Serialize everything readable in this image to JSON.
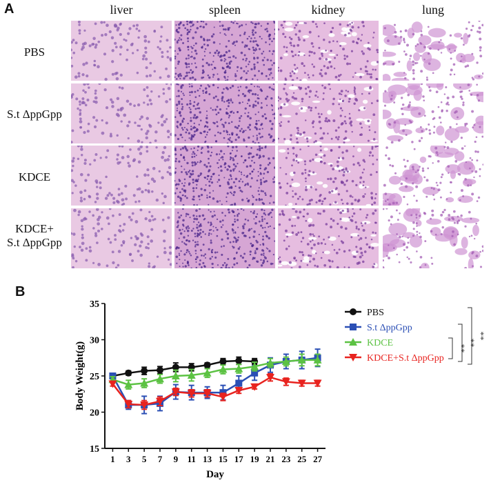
{
  "panel_labels": {
    "a": "A",
    "b": "B"
  },
  "histology": {
    "columns": [
      "liver",
      "spleen",
      "kidney",
      "lung"
    ],
    "rows": [
      "PBS",
      "S.t ΔppGpp",
      "KDCE",
      "KDCE+\nS.t ΔppGpp"
    ]
  },
  "colors": {
    "pbs": "#111111",
    "st": "#2b4fb5",
    "kdce": "#5cc243",
    "kdce_st": "#e8231f",
    "tissue_bg": "#e7c7e0",
    "nuclei": "#6a3a9c"
  },
  "chart_data": {
    "type": "line",
    "xlabel": "Day",
    "ylabel": "Body Weight(g)",
    "x": [
      1,
      3,
      5,
      7,
      9,
      11,
      13,
      15,
      17,
      19,
      21,
      23,
      25,
      27
    ],
    "ylim": [
      15,
      35
    ],
    "yticks": [
      15,
      20,
      25,
      30,
      35
    ],
    "legend_position": "right",
    "series": [
      {
        "name": "PBS",
        "marker": "circle",
        "values": [
          25.0,
          25.4,
          25.7,
          25.8,
          26.2,
          26.2,
          26.5,
          27.0,
          27.1,
          27.0,
          null,
          null,
          null,
          null
        ],
        "errors": [
          0.3,
          0.3,
          0.5,
          0.5,
          0.6,
          0.5,
          0.3,
          0.4,
          0.5,
          0.4,
          null,
          null,
          null,
          null
        ]
      },
      {
        "name": "S.t ΔppGpp",
        "marker": "square",
        "values": [
          25.0,
          21.0,
          21.0,
          21.2,
          22.8,
          22.7,
          22.7,
          22.7,
          24.0,
          25.4,
          26.5,
          27.0,
          27.2,
          27.5
        ],
        "errors": [
          0.3,
          0.6,
          1.2,
          1.0,
          1.0,
          1.0,
          0.8,
          1.0,
          1.0,
          1.0,
          1.0,
          1.0,
          1.2,
          1.2
        ]
      },
      {
        "name": "KDCE",
        "marker": "triangle-up",
        "values": [
          24.5,
          23.8,
          24.0,
          24.6,
          25.0,
          25.1,
          25.4,
          25.9,
          26.0,
          26.3,
          26.8,
          27.0,
          27.2,
          27.2
        ],
        "errors": [
          0.4,
          0.6,
          0.6,
          0.6,
          0.8,
          0.8,
          0.6,
          0.6,
          0.6,
          0.6,
          0.6,
          0.6,
          0.8,
          0.8
        ]
      },
      {
        "name": "KDCE+S.t ΔppGpp",
        "marker": "triangle-down",
        "values": [
          23.9,
          21.1,
          21.0,
          21.5,
          22.8,
          22.6,
          22.6,
          22.1,
          23.0,
          23.5,
          24.8,
          24.2,
          24.0,
          24.0
        ],
        "errors": [
          0.3,
          0.5,
          0.6,
          0.6,
          0.5,
          0.5,
          0.5,
          0.5,
          0.4,
          0.3,
          0.5,
          0.5,
          0.4,
          0.4
        ]
      }
    ],
    "significance": [
      "**",
      "**",
      "**"
    ]
  }
}
